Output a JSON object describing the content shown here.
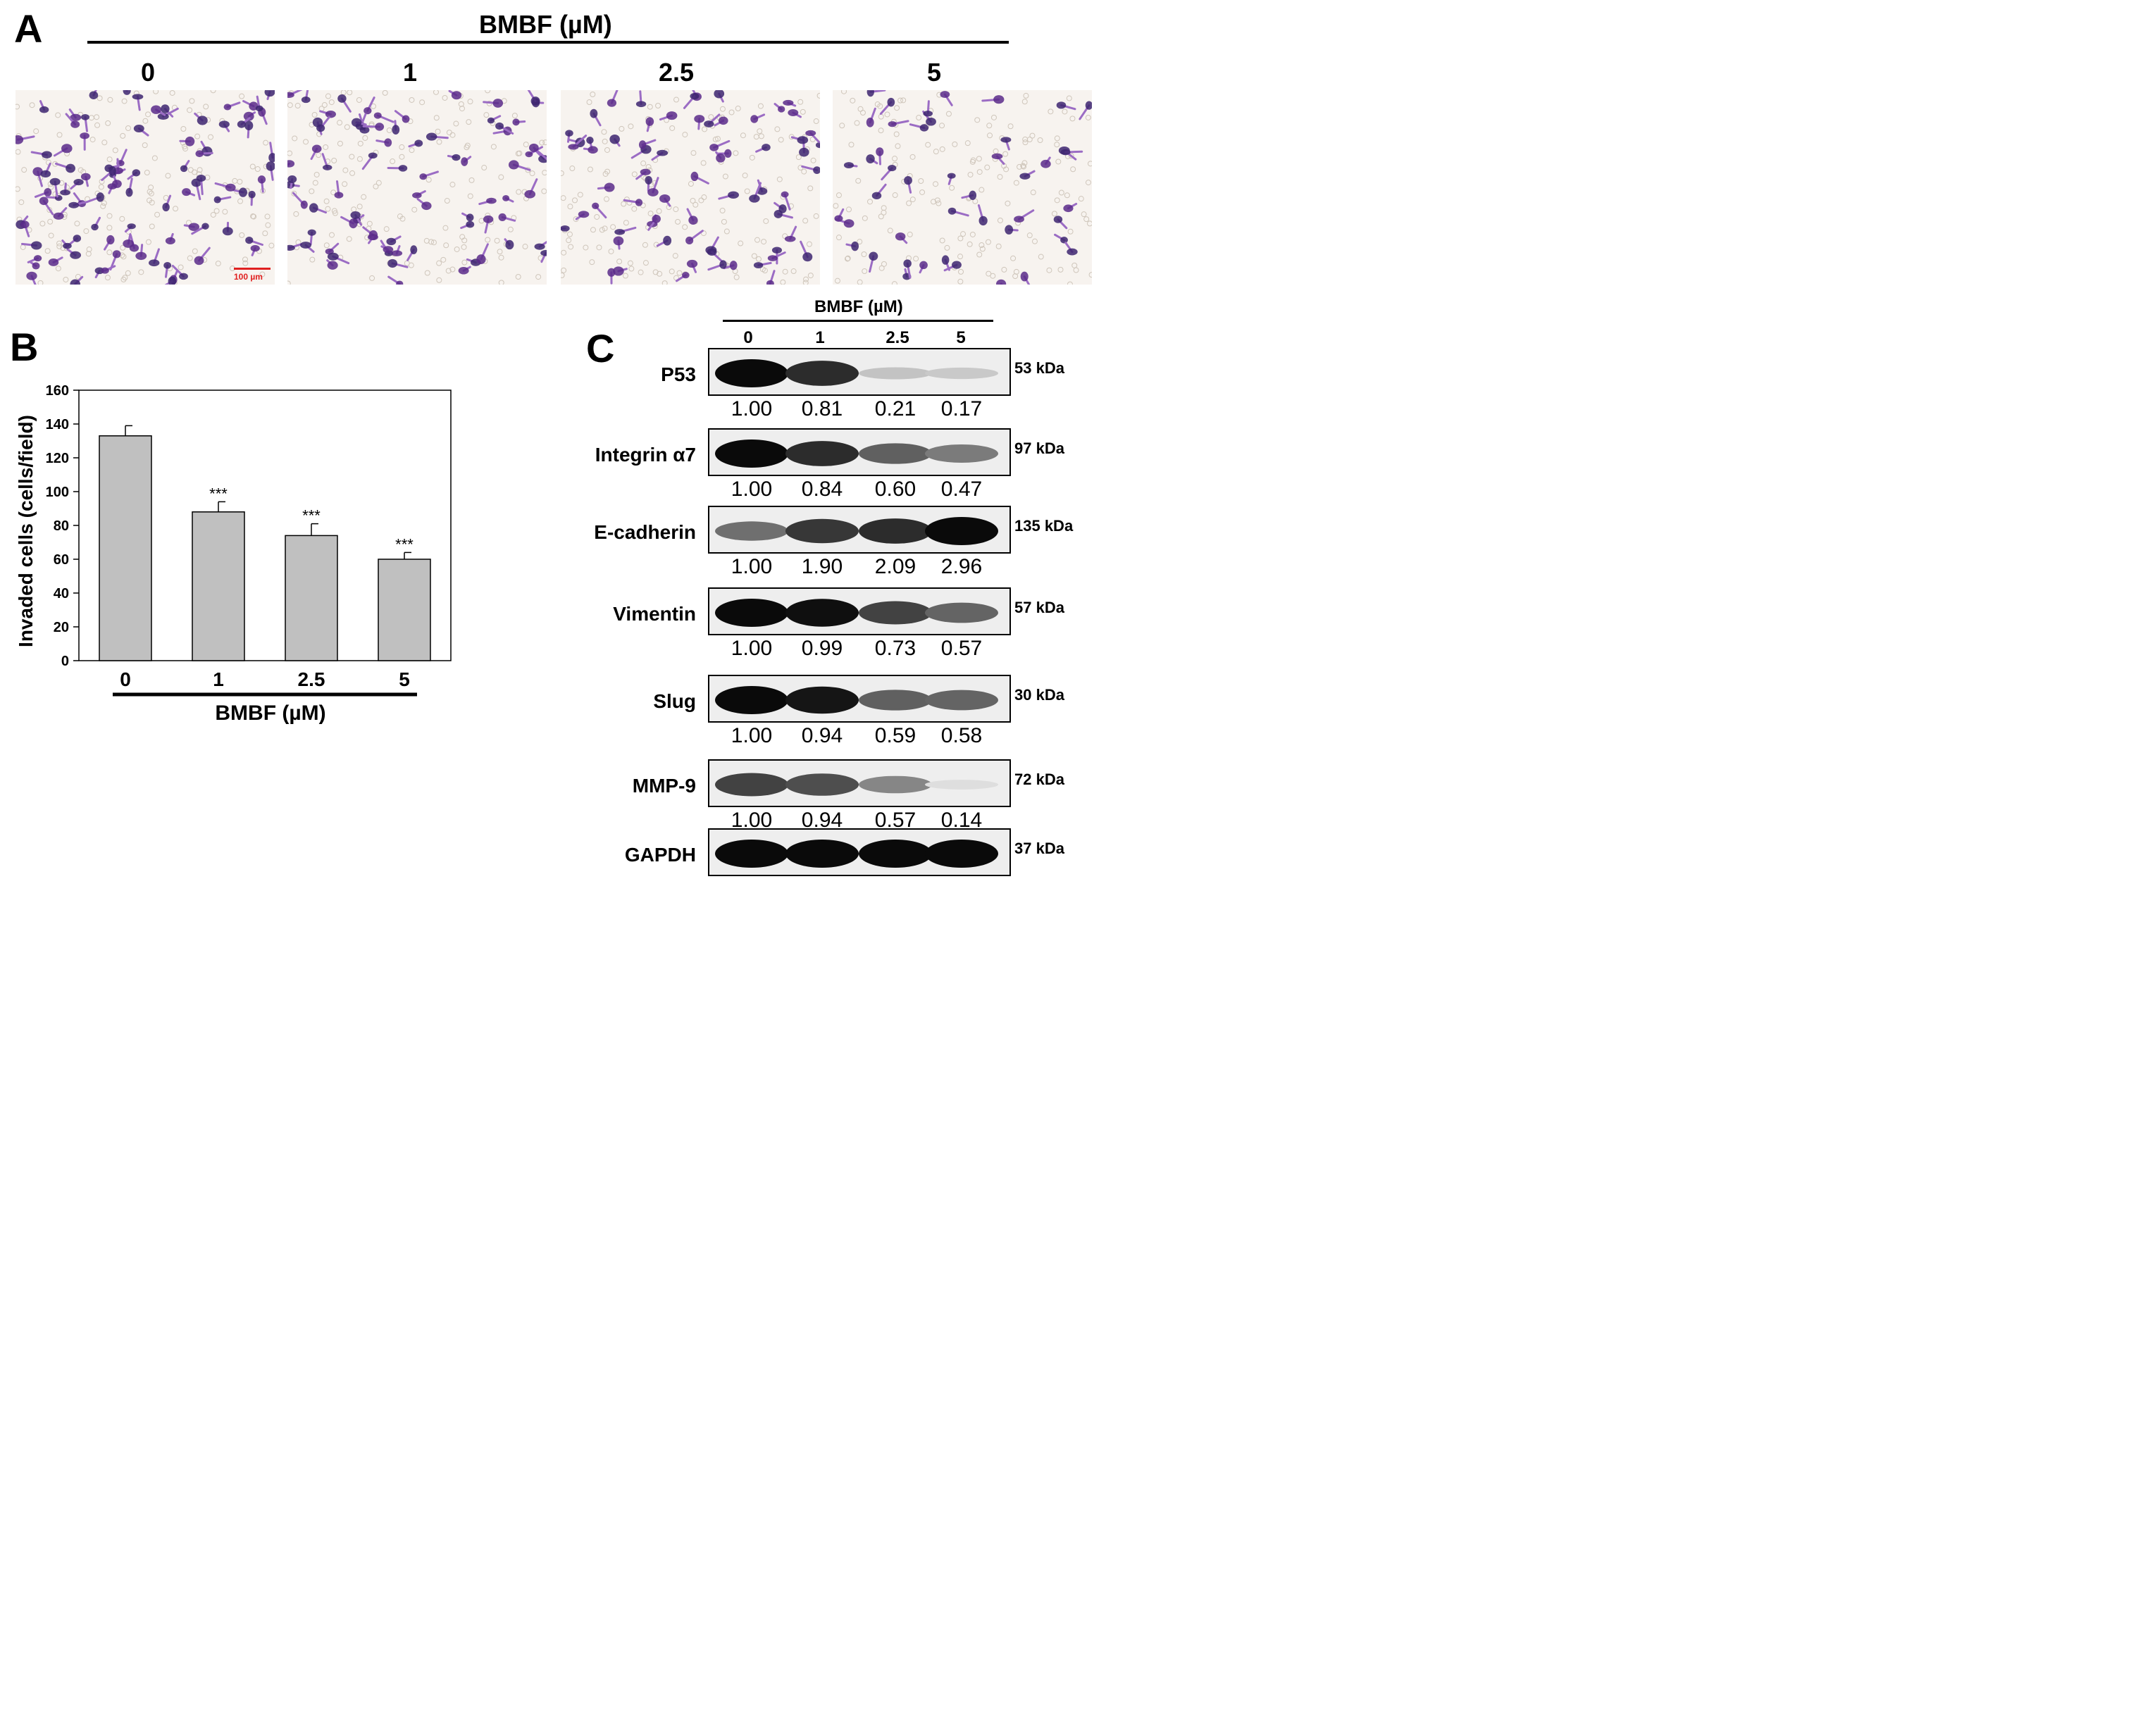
{
  "panel_a": {
    "letter": "A",
    "header": "BMBF (µM)",
    "conditions": [
      "0",
      "1",
      "2.5",
      "5"
    ],
    "scale_bar_label": "100 µm",
    "scale_bar_color": "#e02020",
    "stain_color": "#5a2a8a"
  },
  "chart_data": {
    "type": "bar",
    "panel_letter": "B",
    "categories": [
      "0",
      "1",
      "2.5",
      "5"
    ],
    "values": [
      133,
      88,
      74,
      60
    ],
    "errors": [
      6,
      6,
      7,
      4
    ],
    "significance": [
      "",
      "***",
      "***",
      "***"
    ],
    "title": "",
    "xlabel": "BMBF (µM)",
    "ylabel": "Invaded cells (cells/field)",
    "ylim": [
      0,
      160
    ],
    "yticks": [
      0,
      20,
      40,
      60,
      80,
      100,
      120,
      140,
      160
    ],
    "bar_color": "#c0c0c0"
  },
  "panel_c": {
    "letter": "C",
    "header": "BMBF (µM)",
    "lanes": [
      "0",
      "1",
      "2.5",
      "5"
    ],
    "blots": [
      {
        "protein": "P53",
        "kda": "53 kDa",
        "quant": [
          "1.00",
          "0.81",
          "0.21",
          "0.17"
        ],
        "intensity": [
          1.0,
          0.85,
          0.18,
          0.15
        ]
      },
      {
        "protein": "Integrin α7",
        "kda": "97 kDa",
        "quant": [
          "1.00",
          "0.84",
          "0.60",
          "0.47"
        ],
        "intensity": [
          1.0,
          0.85,
          0.62,
          0.5
        ]
      },
      {
        "protein": "E-cadherin",
        "kda": "135 kDa",
        "quant": [
          "1.00",
          "1.90",
          "2.09",
          "2.96"
        ],
        "intensity": [
          0.55,
          0.8,
          0.85,
          1.0
        ]
      },
      {
        "protein": "Vimentin",
        "kda": "57 kDa",
        "quant": [
          "1.00",
          "0.99",
          "0.73",
          "0.57"
        ],
        "intensity": [
          1.0,
          0.98,
          0.75,
          0.6
        ]
      },
      {
        "protein": "Slug",
        "kda": "30 kDa",
        "quant": [
          "1.00",
          "0.94",
          "0.59",
          "0.58"
        ],
        "intensity": [
          1.0,
          0.95,
          0.62,
          0.6
        ]
      },
      {
        "protein": "MMP-9",
        "kda": "72 kDa",
        "quant": [
          "1.00",
          "0.94",
          "0.57",
          "0.14"
        ],
        "intensity": [
          0.75,
          0.7,
          0.45,
          0.06
        ]
      },
      {
        "protein": "GAPDH",
        "kda": "37 kDa",
        "quant": [],
        "intensity": [
          1.0,
          1.0,
          1.0,
          1.0
        ]
      }
    ]
  }
}
